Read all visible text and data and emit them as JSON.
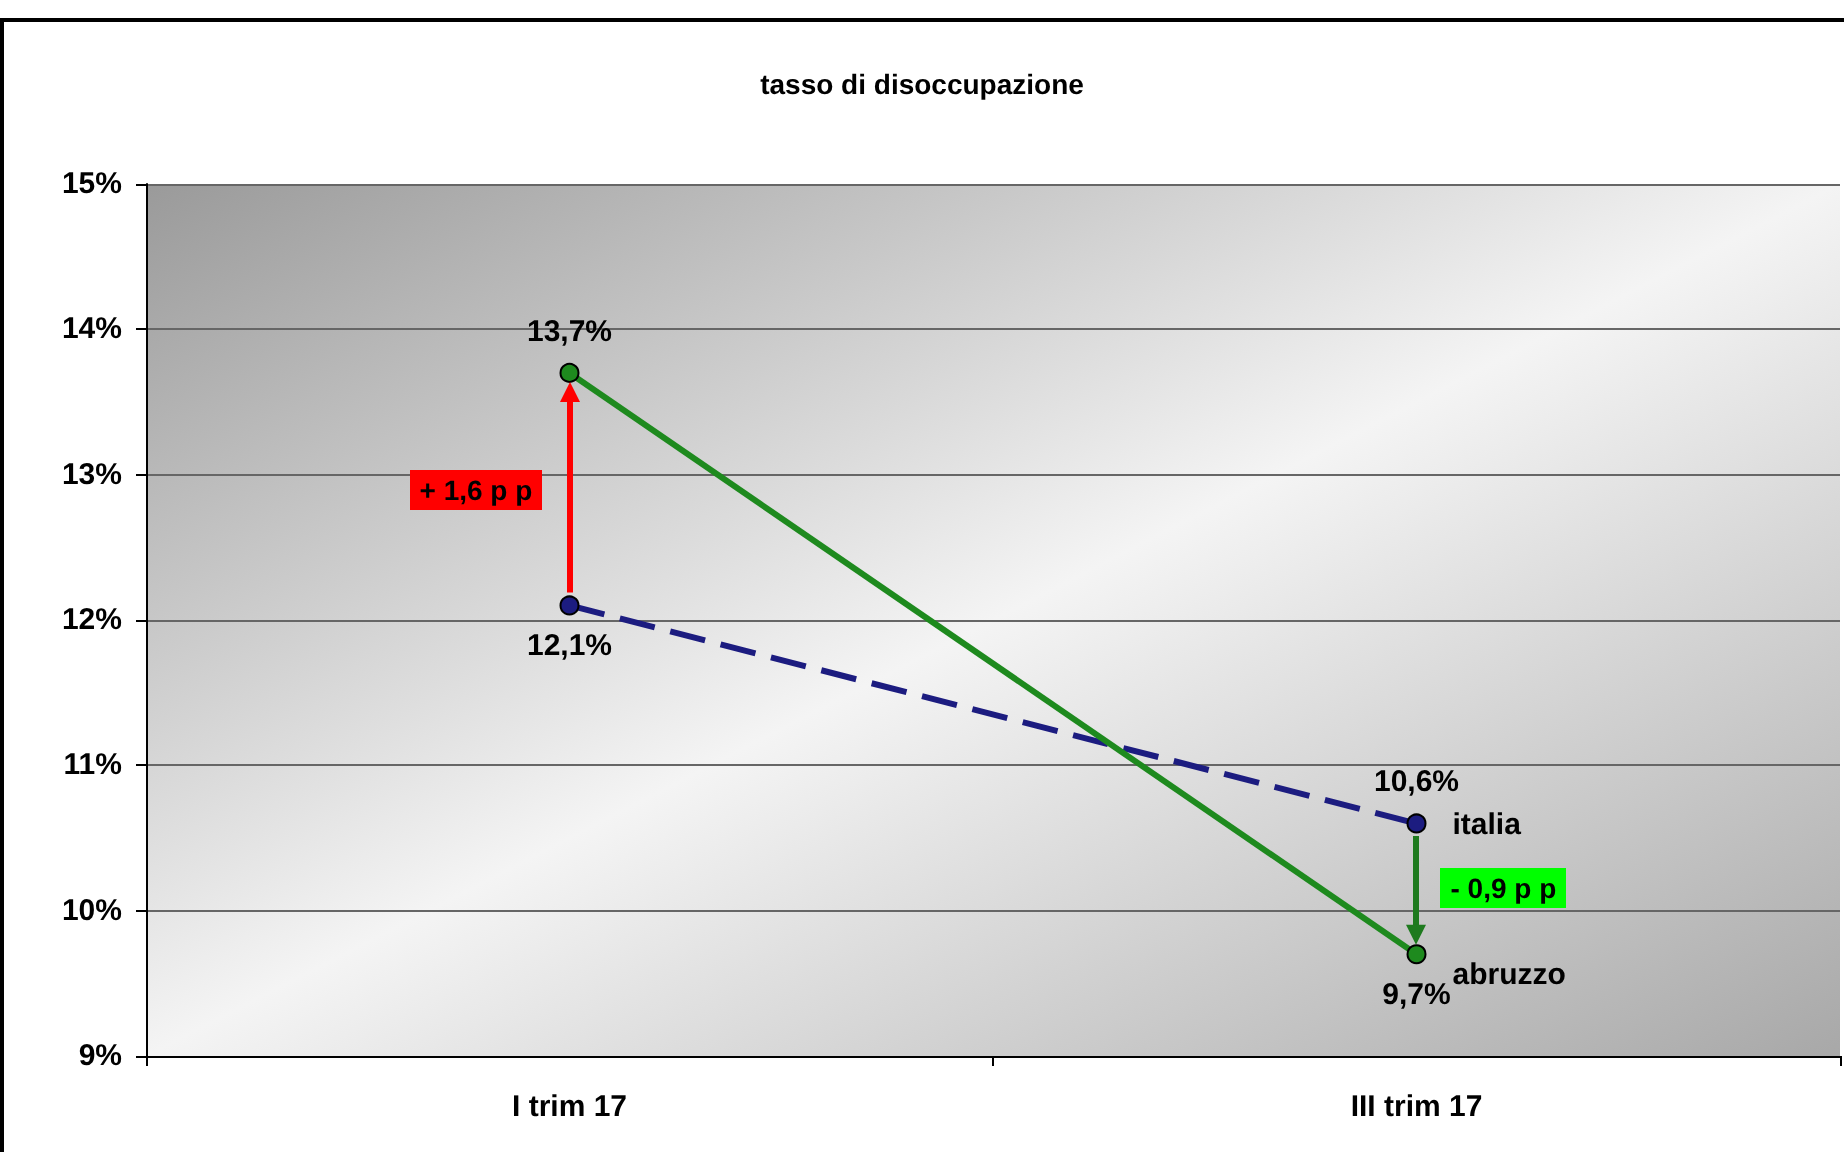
{
  "chart_data": {
    "type": "line",
    "title": "tasso di disoccupazione",
    "categories": [
      "I trim 17",
      "III trim 17"
    ],
    "series": [
      {
        "name": "italia",
        "color": "#1c1c80",
        "values": [
          12.1,
          10.6
        ],
        "line_style": "dashed",
        "value_labels": [
          "12,1%",
          "10,6%"
        ]
      },
      {
        "name": "abruzzo",
        "color": "#1e8a1e",
        "values": [
          13.7,
          9.7
        ],
        "line_style": "solid",
        "value_labels": [
          "13,7%",
          "9,7%"
        ]
      }
    ],
    "ylim": [
      9,
      15
    ],
    "yticks": [
      {
        "value": 9,
        "label": "9%"
      },
      {
        "value": 10,
        "label": "10%"
      },
      {
        "value": 11,
        "label": "11%"
      },
      {
        "value": 12,
        "label": "12%"
      },
      {
        "value": 13,
        "label": "13%"
      },
      {
        "value": 14,
        "label": "14%"
      },
      {
        "value": 15,
        "label": "15%"
      }
    ],
    "grid": "y",
    "legend": false,
    "marker": "circle",
    "annotations": [
      "+ 1,6 p p",
      "- 0,9 p p"
    ]
  }
}
